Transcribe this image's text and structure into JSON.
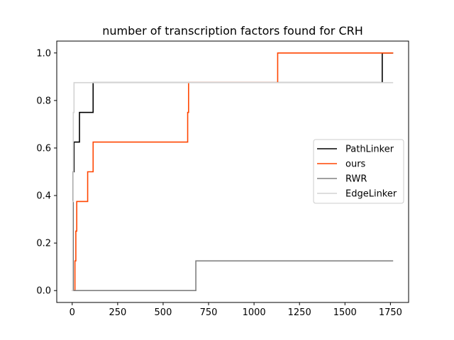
{
  "chart_data": {
    "type": "line",
    "step": "post",
    "title": "number of transcription factors found for CRH",
    "xlabel": "",
    "ylabel": "",
    "xlim": [
      -85,
      1850
    ],
    "ylim": [
      -0.05,
      1.05
    ],
    "xticks": [
      0,
      250,
      500,
      750,
      1000,
      1250,
      1500,
      1750
    ],
    "xtick_labels": [
      "0",
      "250",
      "500",
      "750",
      "1000",
      "1250",
      "1500",
      "1750"
    ],
    "yticks": [
      0.0,
      0.2,
      0.4,
      0.6,
      0.8,
      1.0
    ],
    "ytick_labels": [
      "0.0",
      "0.2",
      "0.4",
      "0.6",
      "0.8",
      "1.0"
    ],
    "grid": false,
    "legend_position": "center-right",
    "series": [
      {
        "name": "PathLinker",
        "color": "#000000",
        "x": [
          0,
          5,
          10,
          40,
          115,
          1705,
          1765
        ],
        "y": [
          0.0,
          0.5,
          0.625,
          0.75,
          0.875,
          1.0,
          1.0
        ]
      },
      {
        "name": "ours",
        "color": "#ff4500",
        "x": [
          0,
          15,
          20,
          25,
          85,
          115,
          635,
          640,
          1130,
          1765
        ],
        "y": [
          0.0,
          0.125,
          0.25,
          0.375,
          0.5,
          0.625,
          0.75,
          0.875,
          1.0,
          1.0
        ]
      },
      {
        "name": "RWR",
        "color": "#808080",
        "x": [
          0,
          680,
          1765
        ],
        "y": [
          0.0,
          0.125,
          0.125
        ]
      },
      {
        "name": "EdgeLinker",
        "color": "#d3d3d3",
        "x": [
          0,
          3,
          6,
          10,
          1765
        ],
        "y": [
          0.0,
          0.375,
          0.75,
          0.875,
          0.875
        ]
      }
    ]
  }
}
